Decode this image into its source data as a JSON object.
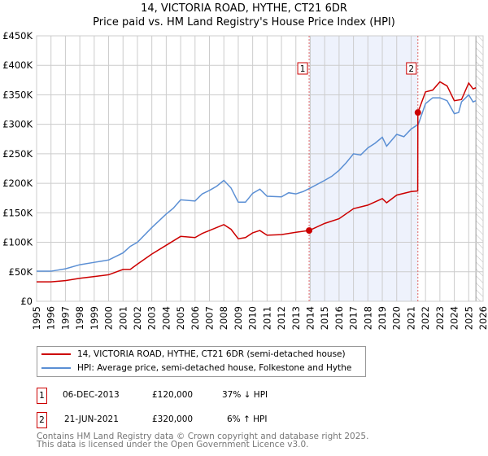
{
  "header": {
    "title": "14, VICTORIA ROAD, HYTHE, CT21 6DR",
    "subtitle": "Price paid vs. HM Land Registry's House Price Index (HPI)"
  },
  "chart_data": {
    "type": "line",
    "title": "14, VICTORIA ROAD, HYTHE, CT21 6DR — Price paid vs. HM Land Registry's House Price Index (HPI)",
    "xlim": [
      1995,
      2026
    ],
    "ylim": [
      0,
      450000
    ],
    "y_ticks": [
      {
        "v": 0,
        "label": "£0"
      },
      {
        "v": 50000,
        "label": "£50K"
      },
      {
        "v": 100000,
        "label": "£100K"
      },
      {
        "v": 150000,
        "label": "£150K"
      },
      {
        "v": 200000,
        "label": "£200K"
      },
      {
        "v": 250000,
        "label": "£250K"
      },
      {
        "v": 300000,
        "label": "£300K"
      },
      {
        "v": 350000,
        "label": "£350K"
      },
      {
        "v": 400000,
        "label": "£400K"
      },
      {
        "v": 450000,
        "label": "£450K"
      }
    ],
    "x_ticks": [
      "1995",
      "1996",
      "1997",
      "1998",
      "1999",
      "2000",
      "2001",
      "2002",
      "2003",
      "2004",
      "2005",
      "2006",
      "2007",
      "2008",
      "2009",
      "2010",
      "2011",
      "2012",
      "2013",
      "2014",
      "2015",
      "2016",
      "2017",
      "2018",
      "2019",
      "2020",
      "2021",
      "2022",
      "2023",
      "2024",
      "2025",
      "2026"
    ],
    "grid": true,
    "shaded_range": [
      2013.92,
      2021.47
    ],
    "hatched_from": 2025.5,
    "series": [
      {
        "name": "14, VICTORIA ROAD, HYTHE, CT21 6DR (semi-detached house)",
        "color": "#cc0000",
        "x": [
          1995,
          1996,
          1997,
          1998,
          1999,
          2000,
          2001,
          2001.5,
          2002,
          2003,
          2004,
          2005,
          2006,
          2006.5,
          2007,
          2008,
          2008.5,
          2009,
          2009.5,
          2010,
          2010.5,
          2011,
          2012,
          2013,
          2013.92,
          2015,
          2016,
          2017,
          2018,
          2019,
          2019.3,
          2020,
          2021,
          2021.46,
          2021.47,
          2022,
          2022.5,
          2023,
          2023.5,
          2024,
          2024.5,
          2025,
          2025.3,
          2025.5
        ],
        "y": [
          33000,
          33000,
          35000,
          39000,
          42000,
          45000,
          54000,
          54000,
          63000,
          80000,
          95000,
          110000,
          108000,
          115000,
          120000,
          130000,
          122000,
          106000,
          108000,
          116000,
          120000,
          112000,
          113000,
          117000,
          120000,
          132000,
          140000,
          157000,
          163000,
          174000,
          167000,
          180000,
          186000,
          187000,
          320000,
          355000,
          358000,
          372000,
          365000,
          340000,
          342000,
          370000,
          360000,
          362000
        ]
      },
      {
        "name": "HPI: Average price, semi-detached house, Folkestone and Hythe",
        "color": "#5b8fd4",
        "x": [
          1995,
          1996,
          1997,
          1998,
          1999,
          2000,
          2001,
          2001.5,
          2002,
          2003,
          2004,
          2004.5,
          2005,
          2006,
          2006.5,
          2007,
          2007.5,
          2008,
          2008.5,
          2009,
          2009.5,
          2010,
          2010.5,
          2011,
          2012,
          2012.5,
          2013,
          2013.5,
          2014,
          2015,
          2015.5,
          2016,
          2016.5,
          2017,
          2017.5,
          2018,
          2018.5,
          2019,
          2019.3,
          2020,
          2020.5,
          2021,
          2021.5,
          2022,
          2022.5,
          2023,
          2023.5,
          2024,
          2024.3,
          2024.5,
          2025,
          2025.3,
          2025.5
        ],
        "y": [
          51000,
          51000,
          55000,
          62000,
          66000,
          70000,
          82000,
          93000,
          100000,
          125000,
          148000,
          158000,
          172000,
          170000,
          182000,
          188000,
          195000,
          205000,
          192000,
          168000,
          168000,
          183000,
          190000,
          178000,
          177000,
          184000,
          182000,
          186000,
          192000,
          205000,
          212000,
          222000,
          235000,
          250000,
          248000,
          260000,
          268000,
          278000,
          263000,
          283000,
          279000,
          292000,
          300000,
          335000,
          345000,
          345000,
          340000,
          318000,
          320000,
          338000,
          350000,
          338000,
          340000
        ]
      }
    ],
    "annotations": [
      {
        "label": "1",
        "x": 2013.92,
        "y": 120000
      },
      {
        "label": "2",
        "x": 2021.47,
        "y": 320000
      }
    ]
  },
  "legend": [
    {
      "label": "14, VICTORIA ROAD, HYTHE, CT21 6DR (semi-detached house)",
      "color": "#cc0000"
    },
    {
      "label": "HPI: Average price, semi-detached house, Folkestone and Hythe",
      "color": "#5b8fd4"
    }
  ],
  "sales": [
    {
      "num": "1",
      "date": "06-DEC-2013",
      "price": "£120,000",
      "hpi": "37% ↓ HPI"
    },
    {
      "num": "2",
      "date": "21-JUN-2021",
      "price": "£320,000",
      "hpi": "6% ↑ HPI"
    }
  ],
  "footer": {
    "line1": "Contains HM Land Registry data © Crown copyright and database right 2025.",
    "line2": "This data is licensed under the Open Government Licence v3.0."
  }
}
